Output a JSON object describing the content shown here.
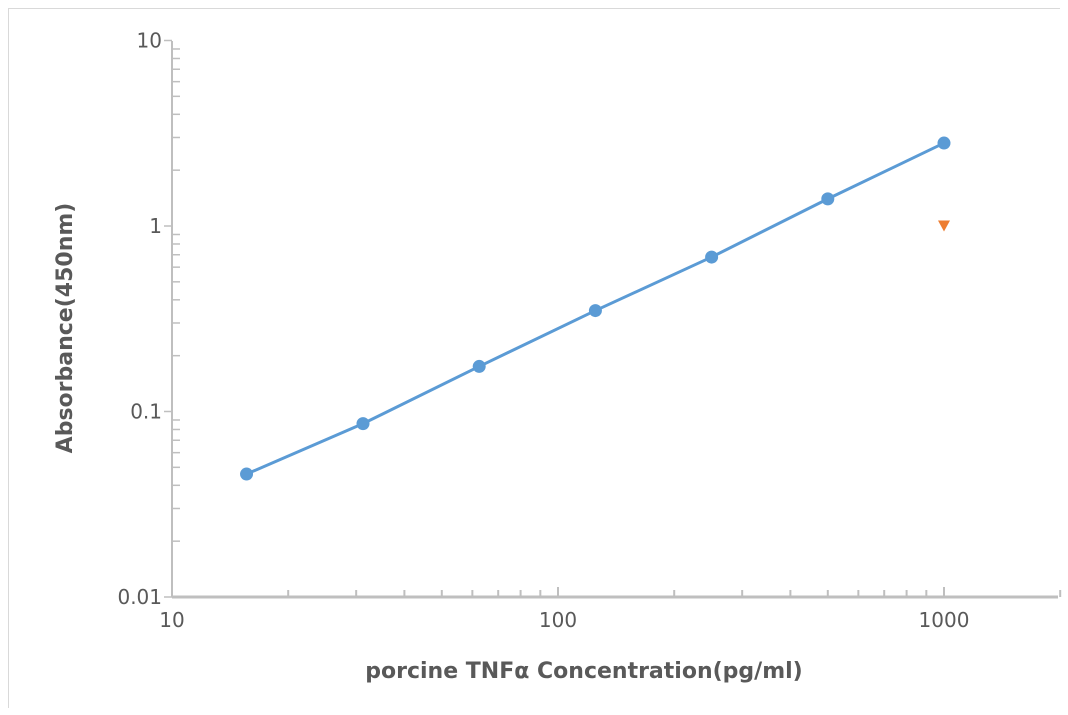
{
  "chart_data": {
    "type": "scatter",
    "title": "",
    "xlabel": "porcine TNFα Concentration(pg/ml)",
    "ylabel": "Absorbance(450nm)",
    "x_scale": "log",
    "y_scale": "log",
    "xlim": [
      10,
      2000
    ],
    "ylim": [
      0.01,
      10
    ],
    "x_ticks": [
      "10",
      "100",
      "1000"
    ],
    "y_ticks": [
      "0.01",
      "0.1",
      "1",
      "10"
    ],
    "grid": false,
    "legend": "none",
    "series": [
      {
        "color": "#5b9bd5",
        "marker": "circle",
        "line": true,
        "x": [
          15.6,
          31.25,
          62.5,
          125,
          250,
          500,
          1000
        ],
        "y": [
          0.046,
          0.086,
          0.175,
          0.35,
          0.68,
          1.4,
          2.8
        ]
      },
      {
        "color": "#ed7d31",
        "marker": "triangle-down",
        "line": false,
        "x": [
          1000
        ],
        "y": [
          1.0
        ]
      }
    ]
  }
}
